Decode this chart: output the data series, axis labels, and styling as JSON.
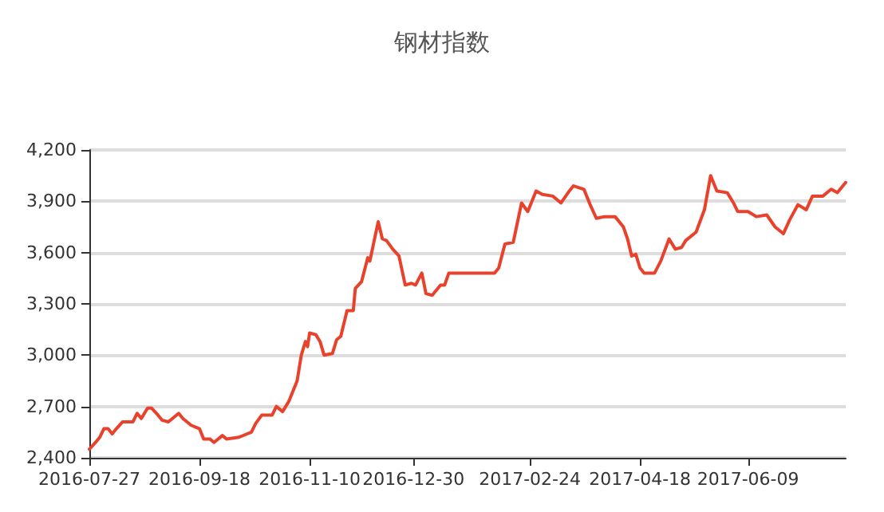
{
  "chart_data": {
    "type": "line",
    "title": "钢材指数",
    "x": [
      "2016-07-27",
      "2016-07-30",
      "2016-08-01",
      "2016-08-03",
      "2016-08-05",
      "2016-08-07",
      "2016-08-09",
      "2016-08-12",
      "2016-08-17",
      "2016-08-19",
      "2016-08-21",
      "2016-08-24",
      "2016-08-26",
      "2016-08-29",
      "2016-08-31",
      "2016-09-03",
      "2016-09-05",
      "2016-09-08",
      "2016-09-10",
      "2016-09-14",
      "2016-09-18",
      "2016-09-20",
      "2016-09-23",
      "2016-09-25",
      "2016-09-29",
      "2016-10-01",
      "2016-10-07",
      "2016-10-11",
      "2016-10-13",
      "2016-10-15",
      "2016-10-18",
      "2016-10-23",
      "2016-10-25",
      "2016-10-28",
      "2016-10-31",
      "2016-11-04",
      "2016-11-06",
      "2016-11-08",
      "2016-11-09",
      "2016-11-10",
      "2016-11-13",
      "2016-11-15",
      "2016-11-17",
      "2016-11-21",
      "2016-11-23",
      "2016-11-25",
      "2016-11-28",
      "2016-12-01",
      "2016-12-02",
      "2016-12-05",
      "2016-12-08",
      "2016-12-09",
      "2016-12-13",
      "2016-12-15",
      "2016-12-17",
      "2016-12-20",
      "2016-12-23",
      "2016-12-26",
      "2016-12-29",
      "2016-12-31",
      "2017-01-03",
      "2017-01-05",
      "2017-01-08",
      "2017-01-12",
      "2017-01-14",
      "2017-01-16",
      "2017-02-07",
      "2017-02-09",
      "2017-02-12",
      "2017-02-16",
      "2017-02-20",
      "2017-02-23",
      "2017-02-27",
      "2017-03-02",
      "2017-03-07",
      "2017-03-11",
      "2017-03-15",
      "2017-03-17",
      "2017-03-22",
      "2017-03-25",
      "2017-03-28",
      "2017-04-01",
      "2017-04-06",
      "2017-04-10",
      "2017-04-12",
      "2017-04-14",
      "2017-04-16",
      "2017-04-18",
      "2017-04-20",
      "2017-04-25",
      "2017-04-28",
      "2017-05-02",
      "2017-05-05",
      "2017-05-08",
      "2017-05-10",
      "2017-05-15",
      "2017-05-19",
      "2017-05-22",
      "2017-05-25",
      "2017-05-30",
      "2017-06-02",
      "2017-06-04",
      "2017-06-09",
      "2017-06-13",
      "2017-06-18",
      "2017-06-22",
      "2017-06-26",
      "2017-06-29",
      "2017-07-03",
      "2017-07-07",
      "2017-07-10",
      "2017-07-15",
      "2017-07-19",
      "2017-07-22",
      "2017-07-26"
    ],
    "series": [
      {
        "color": "#e8412c",
        "values": [
          2450,
          2490,
          2520,
          2570,
          2570,
          2540,
          2570,
          2610,
          2610,
          2660,
          2630,
          2690,
          2690,
          2650,
          2620,
          2610,
          2630,
          2660,
          2630,
          2590,
          2570,
          2510,
          2510,
          2490,
          2530,
          2510,
          2520,
          2540,
          2550,
          2600,
          2650,
          2650,
          2700,
          2670,
          2730,
          2850,
          3000,
          3080,
          3050,
          3130,
          3120,
          3080,
          3000,
          3010,
          3090,
          3110,
          3260,
          3260,
          3390,
          3430,
          3570,
          3550,
          3780,
          3680,
          3670,
          3620,
          3580,
          3410,
          3420,
          3410,
          3480,
          3360,
          3350,
          3410,
          3410,
          3480,
          3480,
          3510,
          3650,
          3660,
          3890,
          3840,
          3960,
          3940,
          3930,
          3890,
          3960,
          3990,
          3970,
          3880,
          3800,
          3810,
          3810,
          3750,
          3680,
          3580,
          3590,
          3510,
          3480,
          3480,
          3550,
          3680,
          3620,
          3630,
          3670,
          3720,
          3850,
          4050,
          3960,
          3950,
          3890,
          3840,
          3840,
          3810,
          3820,
          3750,
          3710,
          3790,
          3880,
          3850,
          3930,
          3930,
          3970,
          3950,
          4010
        ]
      }
    ],
    "xlim": [
      "2016-07-27",
      "2017-07-26"
    ],
    "xticks": [
      "2016-07-27",
      "2016-09-18",
      "2016-11-10",
      "2016-12-30",
      "2017-02-24",
      "2017-04-18",
      "2017-06-09"
    ],
    "ylim": [
      2400,
      4200
    ],
    "yticks": [
      {
        "value": 2400,
        "label": "2,400"
      },
      {
        "value": 2700,
        "label": "2,700"
      },
      {
        "value": 3000,
        "label": "3,000"
      },
      {
        "value": 3300,
        "label": "3,300"
      },
      {
        "value": 3600,
        "label": "3,600"
      },
      {
        "value": 3900,
        "label": "3,900"
      },
      {
        "value": 4200,
        "label": "4,200"
      }
    ],
    "grid": "y"
  }
}
